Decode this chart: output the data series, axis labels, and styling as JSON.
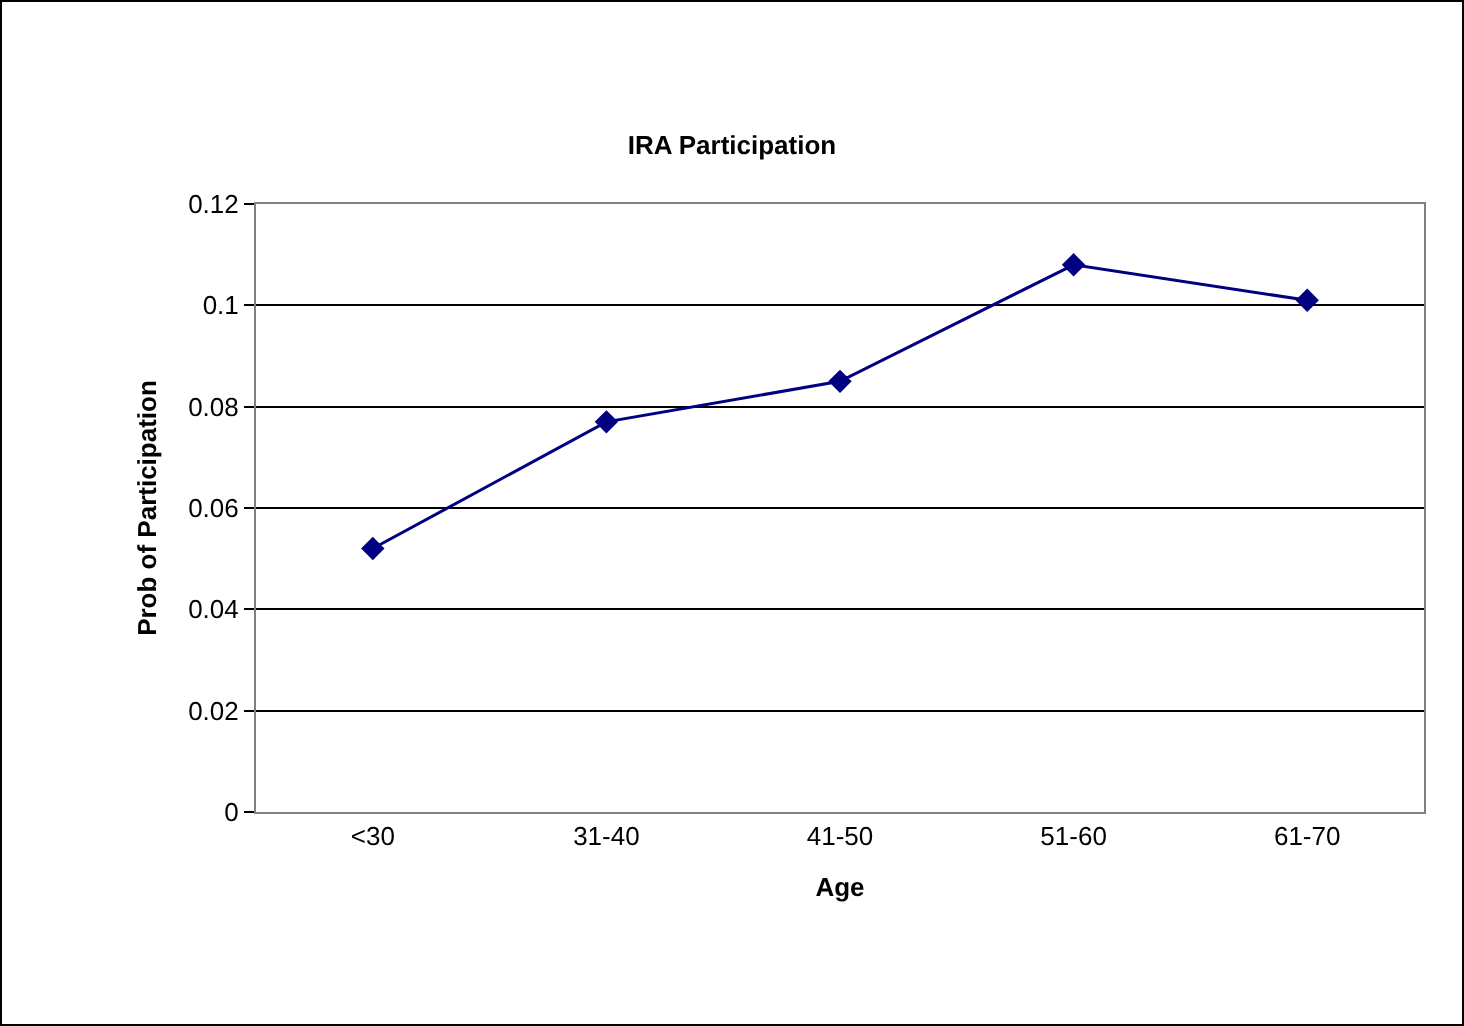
{
  "chart_data": {
    "type": "line",
    "title": "IRA Participation",
    "xlabel": "Age",
    "ylabel": "Prob of Participation",
    "categories": [
      "<30",
      "31-40",
      "41-50",
      "51-60",
      "61-70"
    ],
    "series": [
      {
        "color": "#000080",
        "values": [
          0.052,
          0.077,
          0.085,
          0.108,
          0.101
        ]
      }
    ],
    "ylim": [
      0,
      0.12
    ],
    "yticks": [
      0,
      0.02,
      0.04,
      0.06,
      0.08,
      0.1,
      0.12
    ],
    "grid": "y",
    "marker": "diamond",
    "line_style": "solid"
  }
}
